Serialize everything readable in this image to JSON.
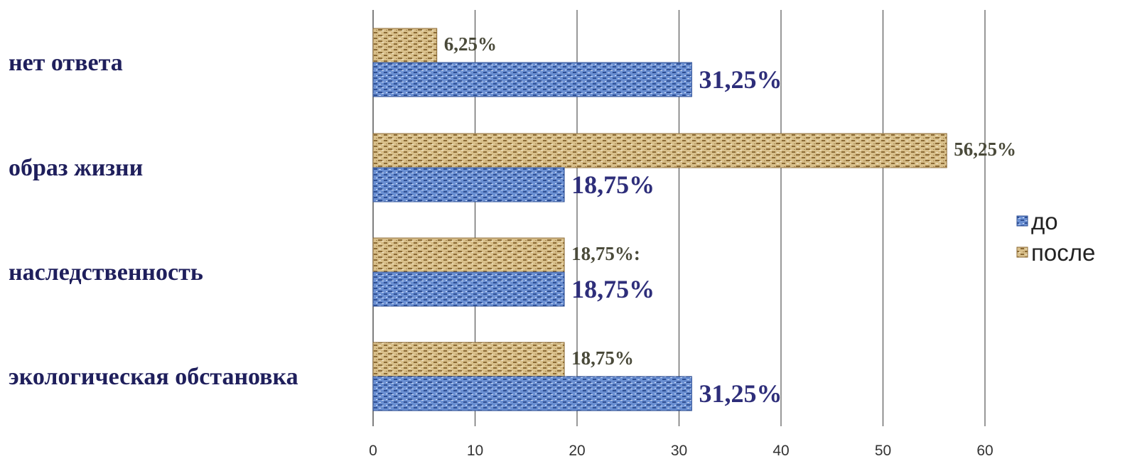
{
  "chart_data": {
    "type": "bar",
    "orientation": "horizontal",
    "categories": [
      "нет ответа",
      "образ жизни",
      "наследственность",
      "экологическая обстановка"
    ],
    "series": [
      {
        "name": "после",
        "values": [
          6.25,
          56.25,
          18.75,
          18.75
        ],
        "labels": [
          "6,25%",
          "56,25%",
          "18,75%:",
          "18,75%"
        ],
        "color": "#c9a86a"
      },
      {
        "name": "до",
        "values": [
          31.25,
          18.75,
          18.75,
          31.25
        ],
        "labels": [
          "31,25%",
          "18,75%",
          "18,75%",
          "31,25%"
        ],
        "color": "#5b80c4"
      }
    ],
    "xlim": [
      0,
      60
    ],
    "ticks": [
      "0",
      "10",
      "20",
      "30",
      "40",
      "50",
      "60"
    ],
    "grid": true,
    "legend": {
      "position": "right",
      "order": [
        "до",
        "после"
      ]
    },
    "title": "",
    "xlabel": "",
    "ylabel": ""
  },
  "colors": {
    "category_text": "#1f1f5c",
    "before_label": "#2e2e7a",
    "after_label": "#4a4a3a",
    "grid": "#555555"
  }
}
